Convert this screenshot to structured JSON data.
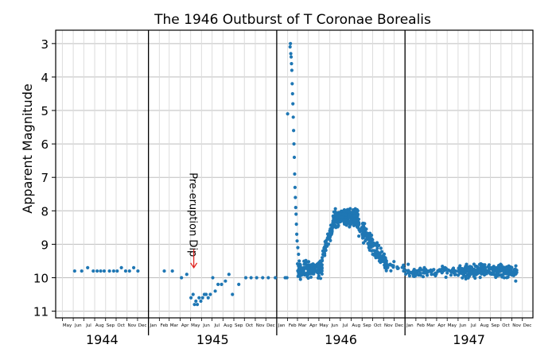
{
  "chart_data": {
    "type": "scatter",
    "title": "The 1946 Outburst of T Coronae Borealis",
    "ylabel": "Apparent Magnitude",
    "xlabel": "",
    "ylim": [
      2.6,
      11.2
    ],
    "y_inverted": true,
    "xlim": [
      "1944-04-12",
      "1947-12-31"
    ],
    "grid": true,
    "y_ticks": [
      "3",
      "4",
      "5",
      "6",
      "7",
      "8",
      "9",
      "10",
      "11"
    ],
    "month_labels": [
      "Jan",
      "Feb",
      "Mar",
      "Apr",
      "May",
      "Jun",
      "Jul",
      "Aug",
      "Sep",
      "Oct",
      "Nov",
      "Dec"
    ],
    "year_labels": [
      "1944",
      "1945",
      "1946",
      "1947"
    ],
    "annotation": {
      "text": "Pre-eruption Dip",
      "color": "#e0201b",
      "x": "1945-05-10",
      "y_from": 7.0,
      "y_to": 9.7
    },
    "series": [
      {
        "color": "#1f77b4",
        "points": [
          [
            "1944-06-05",
            9.8
          ],
          [
            "1944-06-25",
            9.8
          ],
          [
            "1944-07-12",
            9.7
          ],
          [
            "1944-07-28",
            9.8
          ],
          [
            "1944-08-08",
            9.8
          ],
          [
            "1944-08-18",
            9.8
          ],
          [
            "1944-08-28",
            9.8
          ],
          [
            "1944-09-12",
            9.8
          ],
          [
            "1944-09-24",
            9.8
          ],
          [
            "1944-10-04",
            9.8
          ],
          [
            "1944-10-16",
            9.7
          ],
          [
            "1944-10-28",
            9.8
          ],
          [
            "1944-11-08",
            9.8
          ],
          [
            "1944-11-20",
            9.7
          ],
          [
            "1944-12-02",
            9.8
          ],
          [
            "1945-02-15",
            9.8
          ],
          [
            "1945-03-10",
            9.8
          ],
          [
            "1945-04-05",
            10.0
          ],
          [
            "1945-04-20",
            9.9
          ],
          [
            "1945-05-02",
            10.6
          ],
          [
            "1945-05-08",
            10.5
          ],
          [
            "1945-05-12",
            10.8
          ],
          [
            "1945-05-16",
            10.7
          ],
          [
            "1945-05-20",
            10.8
          ],
          [
            "1945-05-25",
            10.6
          ],
          [
            "1945-05-30",
            10.7
          ],
          [
            "1945-06-04",
            10.6
          ],
          [
            "1945-06-09",
            10.5
          ],
          [
            "1945-06-14",
            10.5
          ],
          [
            "1945-06-20",
            10.6
          ],
          [
            "1945-06-26",
            10.5
          ],
          [
            "1945-07-03",
            10.0
          ],
          [
            "1945-07-10",
            10.4
          ],
          [
            "1945-07-18",
            10.2
          ],
          [
            "1945-07-28",
            10.2
          ],
          [
            "1945-08-08",
            10.1
          ],
          [
            "1945-08-18",
            9.9
          ],
          [
            "1945-08-28",
            10.5
          ],
          [
            "1945-09-15",
            10.2
          ],
          [
            "1945-10-05",
            10.0
          ],
          [
            "1945-10-20",
            10.0
          ],
          [
            "1945-11-05",
            10.0
          ],
          [
            "1945-11-22",
            10.0
          ],
          [
            "1945-12-08",
            10.0
          ],
          [
            "1945-12-28",
            10.0
          ],
          [
            "1946-01-25",
            10.0
          ],
          [
            "1946-01-30",
            10.0
          ],
          [
            "1946-02-01",
            5.1
          ],
          [
            "1946-02-08",
            3.1
          ],
          [
            "1946-02-09",
            3.0
          ],
          [
            "1946-02-10",
            3.3
          ],
          [
            "1946-02-11",
            3.4
          ],
          [
            "1946-02-12",
            3.6
          ],
          [
            "1946-02-13",
            3.8
          ],
          [
            "1946-02-14",
            4.2
          ],
          [
            "1946-02-15",
            4.5
          ],
          [
            "1946-02-16",
            4.8
          ],
          [
            "1946-02-17",
            5.2
          ],
          [
            "1946-02-18",
            5.6
          ],
          [
            "1946-02-19",
            6.0
          ],
          [
            "1946-02-20",
            6.4
          ],
          [
            "1946-02-21",
            6.9
          ],
          [
            "1946-02-22",
            7.3
          ],
          [
            "1946-02-23",
            7.6
          ],
          [
            "1946-02-24",
            7.9
          ],
          [
            "1946-02-25",
            8.1
          ],
          [
            "1946-02-26",
            8.4
          ],
          [
            "1946-02-27",
            8.7
          ],
          [
            "1946-02-28",
            8.9
          ],
          [
            "1946-03-02",
            9.1
          ],
          [
            "1946-03-04",
            9.3
          ],
          [
            "1946-03-06",
            9.5
          ],
          [
            "1946-03-08",
            9.6
          ],
          [
            "1946-03-15",
            9.8
          ],
          [
            "1946-03-22",
            9.7
          ],
          [
            "1946-04-01",
            9.9
          ],
          [
            "1946-04-10",
            9.8
          ],
          [
            "1946-04-20",
            9.7
          ],
          [
            "1946-05-01",
            9.8
          ],
          [
            "1946-05-10",
            9.5
          ],
          [
            "1946-05-20",
            9.0
          ],
          [
            "1946-06-01",
            8.6
          ],
          [
            "1946-06-10",
            8.3
          ],
          [
            "1946-06-20",
            8.2
          ],
          [
            "1946-07-01",
            8.1
          ],
          [
            "1946-07-10",
            8.0
          ],
          [
            "1946-07-20",
            8.0
          ],
          [
            "1946-08-01",
            8.1
          ],
          [
            "1946-08-10",
            8.3
          ],
          [
            "1946-08-20",
            8.5
          ],
          [
            "1946-09-01",
            8.7
          ],
          [
            "1946-09-10",
            8.9
          ],
          [
            "1946-09-20",
            9.1
          ],
          [
            "1946-10-01",
            9.3
          ],
          [
            "1946-10-10",
            9.4
          ],
          [
            "1946-10-20",
            9.5
          ],
          [
            "1946-11-05",
            9.7
          ],
          [
            "1946-11-20",
            9.6
          ],
          [
            "1946-12-10",
            9.7
          ],
          [
            "1946-12-28",
            9.8
          ],
          [
            "1947-01-10",
            9.6
          ],
          [
            "1947-01-25",
            9.8
          ],
          [
            "1947-02-10",
            9.8
          ],
          [
            "1947-02-25",
            9.7
          ],
          [
            "1947-03-10",
            9.8
          ],
          [
            "1947-03-25",
            9.9
          ],
          [
            "1947-04-10",
            9.8
          ],
          [
            "1947-04-25",
            9.7
          ],
          [
            "1947-05-10",
            9.8
          ],
          [
            "1947-05-25",
            9.9
          ],
          [
            "1947-06-10",
            9.8
          ],
          [
            "1947-06-25",
            9.6
          ],
          [
            "1947-07-10",
            9.7
          ],
          [
            "1947-07-25",
            9.8
          ],
          [
            "1947-08-10",
            9.7
          ],
          [
            "1947-08-25",
            9.8
          ],
          [
            "1947-09-10",
            9.7
          ],
          [
            "1947-09-25",
            9.8
          ],
          [
            "1947-10-10",
            9.7
          ],
          [
            "1947-10-25",
            9.8
          ],
          [
            "1947-11-05",
            9.9
          ],
          [
            "1947-11-12",
            10.1
          ]
        ],
        "scatter_bands": [
          {
            "from": "1946-03-01",
            "to": "1946-05-10",
            "center_start": 9.75,
            "center_end": 9.75,
            "spread": 0.22,
            "per_day": 2.2
          },
          {
            "from": "1946-05-10",
            "to": "1946-06-10",
            "center_start": 9.4,
            "center_end": 8.45,
            "spread": 0.2,
            "per_day": 2.2
          },
          {
            "from": "1946-06-10",
            "to": "1946-08-20",
            "center_start": 8.2,
            "center_end": 8.2,
            "spread": 0.22,
            "per_day": 3.2
          },
          {
            "from": "1946-08-20",
            "to": "1946-11-10",
            "center_start": 8.4,
            "center_end": 9.6,
            "spread": 0.25,
            "per_day": 1.7
          },
          {
            "from": "1946-11-10",
            "to": "1946-12-31",
            "center_start": 9.65,
            "center_end": 9.7,
            "spread": 0.12,
            "per_day": 0.3
          },
          {
            "from": "1947-01-01",
            "to": "1947-06-01",
            "center_start": 9.85,
            "center_end": 9.8,
            "spread": 0.12,
            "per_day": 0.55
          },
          {
            "from": "1947-06-01",
            "to": "1947-11-15",
            "center_start": 9.8,
            "center_end": 9.8,
            "spread": 0.17,
            "per_day": 1.5
          }
        ]
      }
    ]
  }
}
